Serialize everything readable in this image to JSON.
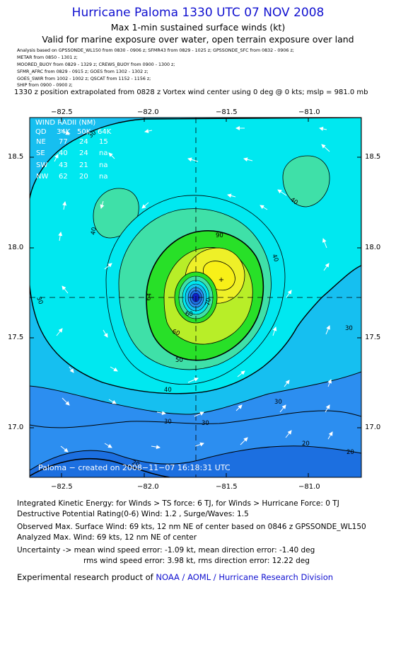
{
  "header": {
    "title": "Hurricane Paloma 1330 UTC 07 NOV 2008",
    "subtitle": "Max 1-min sustained surface winds (kt)",
    "valid": "Valid for marine exposure over water, open terrain exposure over land"
  },
  "sources": [
    "Analysis based on  GPSSONDE_WL150 from 0830 - 0906 z;  SFMR43 from 0829 - 1025 z;  GPSSONDE_SFC from 0832 - 0906 z;",
    "METAR from 0850 - 1301 z;",
    "MOORED_BUOY from 0829 - 1329 z;  CREWS_BUOY from 0900 - 1300 z;",
    "SFMR_AFRC from 0829 - 0915 z;  GOES from 1302 - 1302 z;",
    "GOES_SWIR from 1002 - 1002 z;  QSCAT from 1152 - 1156 z;",
    "SHIP from 0900 - 0900 z;"
  ],
  "extrapolation": "1330 z position extrapolated from 0828 z Vortex wind center using 0 deg @ 0 kts; mslp = 981.0 mb",
  "map": {
    "lon_labels": [
      "−82.5",
      "−82.0",
      "−81.5",
      "−81.0"
    ],
    "lat_labels": [
      "18.5",
      "18.0",
      "17.5",
      "17.0"
    ],
    "colors": {
      "c0": "#1c6fe0",
      "c1": "#2c8ef0",
      "c2": "#16bff0",
      "c3": "#00e8f0",
      "c4": "#3fe0a8",
      "c5": "#28e028",
      "c6": "#b8ee28",
      "c7": "#eef028",
      "c8": "#f8f018",
      "eye": "#1020c8"
    },
    "contour_labels": {
      "c20a": "20",
      "c20b": "20",
      "c20c": "20",
      "c30a": "30",
      "c30b": "30",
      "c30c": "30",
      "c30d": "30",
      "c30e": "30",
      "c30f": "30",
      "c40a": "40",
      "c40b": "40",
      "c40c": "40",
      "c40d": "40",
      "c50a": "50",
      "c60a": "60",
      "c60b": "60",
      "c64a": "64",
      "c70a": "70",
      "c90a": "90"
    },
    "wind_radii": {
      "title": "WIND RADII (NM)",
      "header": [
        "QD",
        "34K",
        "50K",
        "64K"
      ],
      "rows": [
        [
          "NE",
          "77",
          "24",
          "15"
        ],
        [
          "SE",
          "40",
          "24",
          "na"
        ],
        [
          "SW",
          "43",
          "21",
          "na"
        ],
        [
          "NW",
          "62",
          "20",
          "na"
        ]
      ]
    },
    "credit": "Paloma − created on 2008−11−07 16:18:31 UTC"
  },
  "footer": {
    "ike": "Integrated Kinetic Energy:  for Winds > TS force: 6 TJ,  for Winds > Hurricane Force: 0 TJ",
    "dpr": "Destructive Potential Rating(0-6)   Wind: 1.2 , Surge/Waves: 1.5",
    "obs": "Observed Max. Surface Wind: 69 kts, 12 nm NE of center based on 0846 z GPSSONDE_WL150",
    "analyzed": "Analyzed Max. Wind: 69 kts, 12 nm NE of center",
    "unc1": "Uncertainty -> mean wind speed error:  -1.09 kt,   mean direction error:  -1.40 deg",
    "unc2": "rms wind speed error: 3.98 kt,   rms direction error: 12.22 deg",
    "credit_prefix": "Experimental research product of ",
    "credit_link": "NOAA / AOML / Hurricane Research Division"
  }
}
